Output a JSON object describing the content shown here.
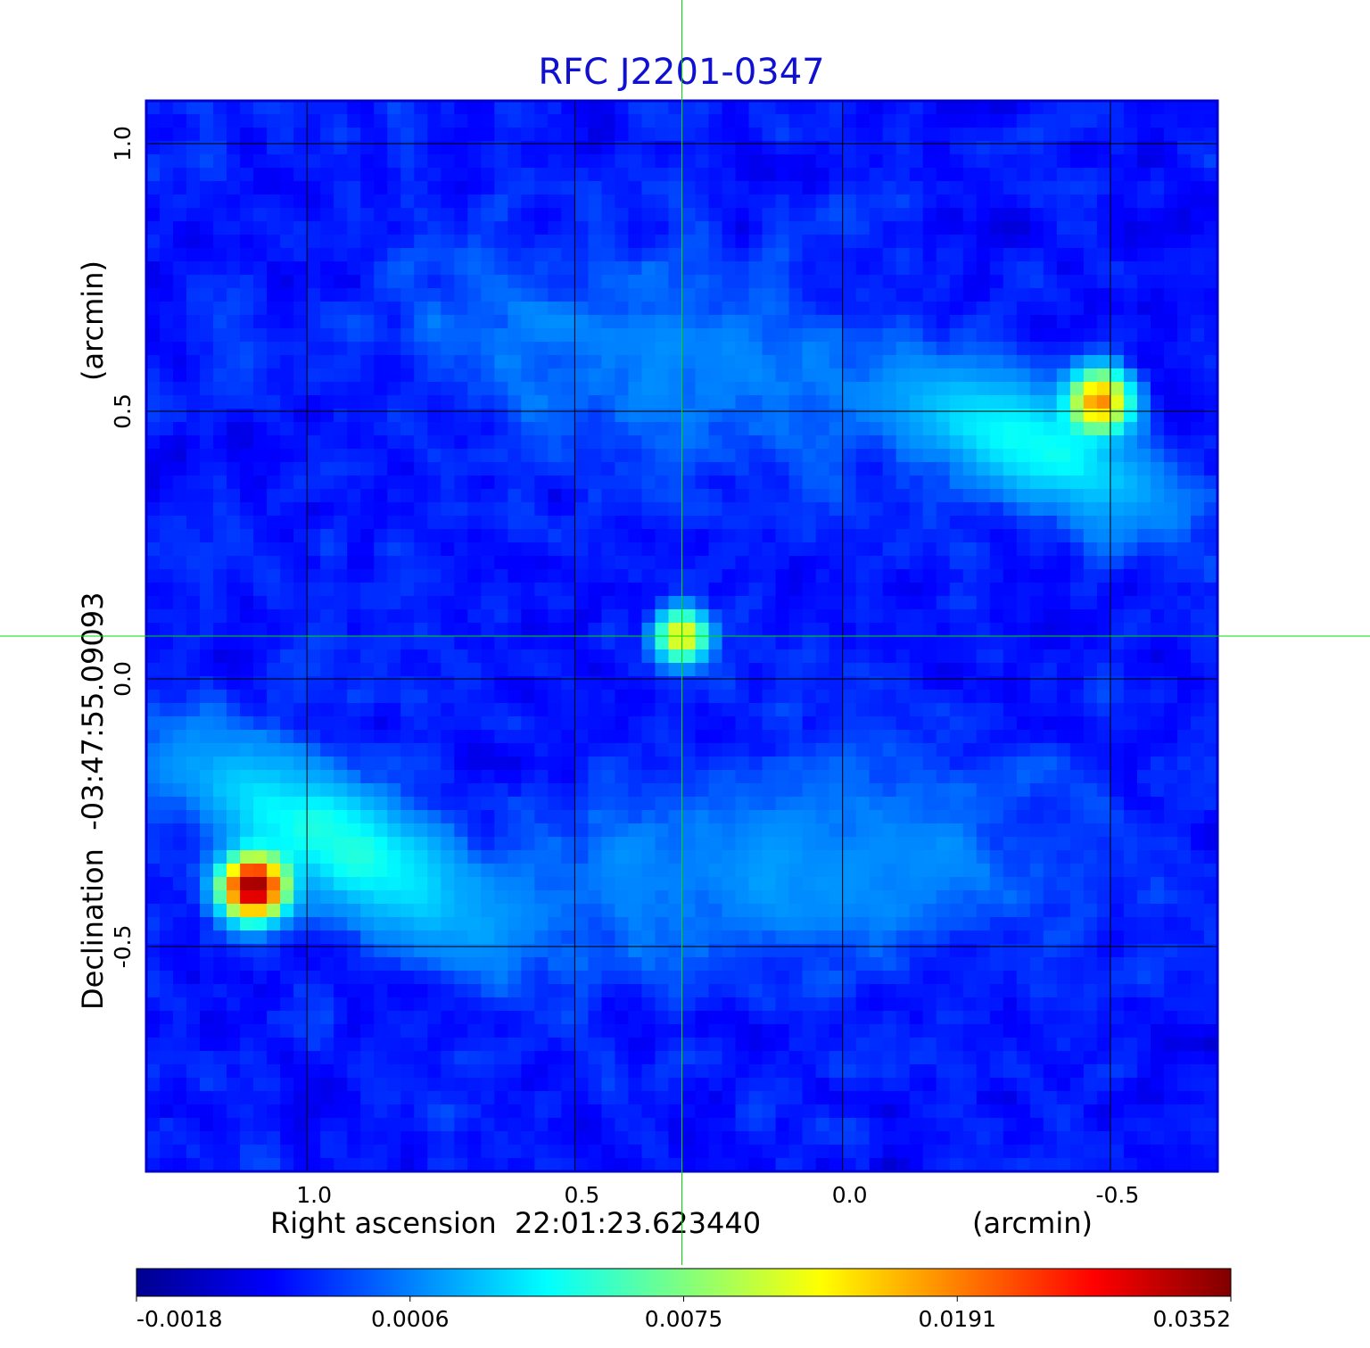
{
  "chart_data": {
    "type": "heatmap",
    "title": "RFC J2201-0347",
    "xlabel": "Right ascension  22:01:23.623440",
    "xlabel_unit": "(arcmin)",
    "ylabel": "Declination  -03:47:55.09093",
    "ylabel_unit": "(arcmin)",
    "x_axis_reversed": true,
    "xlim": [
      1.3,
      -0.7
    ],
    "ylim": [
      -0.92,
      1.08
    ],
    "x_ticks": [
      1.0,
      0.5,
      0.0,
      -0.5
    ],
    "x_tick_labels": [
      "1.0",
      "0.5",
      "0.0",
      "-0.5"
    ],
    "y_ticks": [
      -0.5,
      0.0,
      0.5,
      1.0
    ],
    "y_tick_labels": [
      "-0.5",
      "0.0",
      "0.5",
      "1.0"
    ],
    "grid": true,
    "crosshair": {
      "x": 0.3,
      "y": 0.08,
      "color": "#00dd00"
    },
    "colormap": "jet",
    "colorbar": {
      "ticks": [
        -0.0018,
        0.0006,
        0.0075,
        0.0191,
        0.0352
      ],
      "tick_labels": [
        "-0.0018",
        "0.0006",
        "0.0075",
        "0.0191",
        "0.0352"
      ],
      "placement": "bottom"
    },
    "pixel_grid": [
      80,
      80
    ],
    "sources": [
      {
        "x": 0.3,
        "y": 0.08,
        "peak": 0.014,
        "sigma": 0.03
      },
      {
        "x": -0.48,
        "y": 0.52,
        "peak": 0.019,
        "sigma": 0.035
      },
      {
        "x": 1.1,
        "y": -0.39,
        "peak": 0.0352,
        "sigma": 0.035
      }
    ],
    "extended_emission": [
      {
        "x": -0.35,
        "y": 0.44,
        "peak": 0.0048,
        "sigma_major": 0.17,
        "sigma_minor": 0.06,
        "angle_deg": 25
      },
      {
        "x": 0.95,
        "y": -0.3,
        "peak": 0.0052,
        "sigma_major": 0.2,
        "sigma_minor": 0.07,
        "angle_deg": 30
      },
      {
        "x": 0.35,
        "y": 0.6,
        "peak": 0.0012,
        "sigma_major": 0.3,
        "sigma_minor": 0.12,
        "angle_deg": 10
      },
      {
        "x": 0.1,
        "y": -0.35,
        "peak": 0.0015,
        "sigma_major": 0.35,
        "sigma_minor": 0.12,
        "angle_deg": -5
      }
    ],
    "background_level": -0.0004,
    "noise_level": 0.0008
  },
  "colors": {
    "title": "#1010d0",
    "frame": "#0000cc",
    "grid": "#000000",
    "crosshair": "#00dd00"
  }
}
